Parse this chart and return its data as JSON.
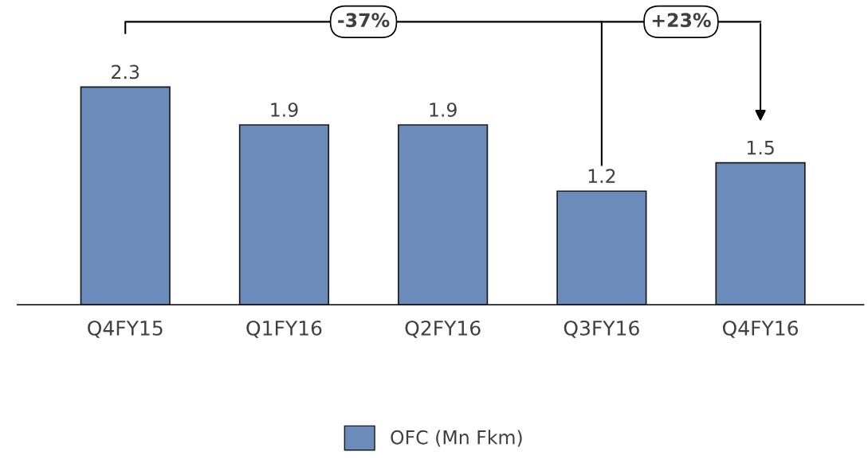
{
  "chart_data": {
    "type": "bar",
    "categories": [
      "Q4FY15",
      "Q1FY16",
      "Q2FY16",
      "Q3FY16",
      "Q4FY16"
    ],
    "series": [
      {
        "name": "OFC (Mn Fkm)",
        "color": "#6b8cba",
        "values": [
          2.3,
          1.9,
          1.9,
          1.2,
          1.5
        ]
      }
    ],
    "data_labels": true,
    "annotations": [
      "-37%",
      "+23%"
    ],
    "legend": "bottom",
    "grid": false
  }
}
